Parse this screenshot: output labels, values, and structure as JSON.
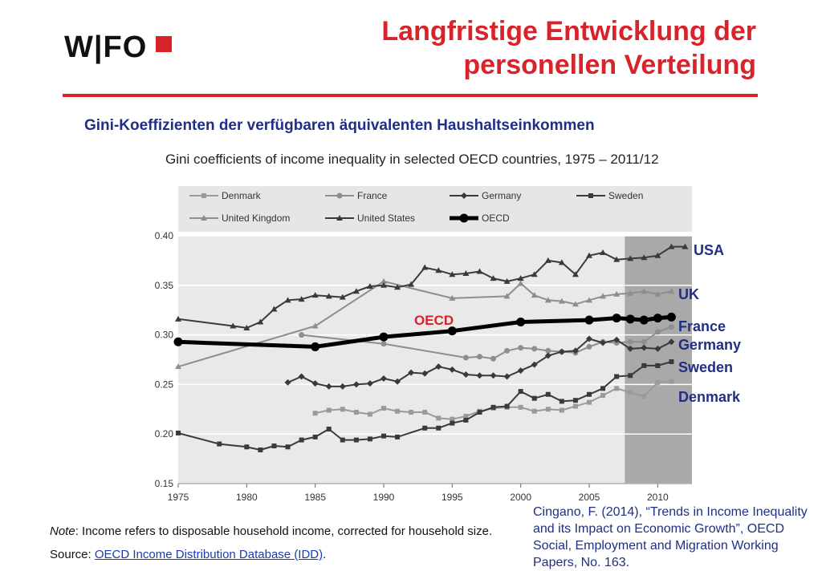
{
  "header": {
    "logo_text": "W|FO",
    "title_line1": "Langfristige Entwicklung der",
    "title_line2": "personellen Verteilung",
    "subtitle": "Gini-Koeffizienten der verfügbaren äquivalenten Haushaltseinkommen"
  },
  "colors": {
    "accent": "#d8232a",
    "label_blue": "#1f2f86",
    "link": "#1a3bb5"
  },
  "country_labels": [
    "USA",
    "UK",
    "France",
    "Germany",
    "Sweden",
    "Denmark"
  ],
  "oecd_label": "OECD",
  "note_prefix": "Note",
  "note_text": ": Income refers to disposable household income, corrected for household size.",
  "source_prefix": "Source: ",
  "source_link": "OECD Income Distribution Database (IDD)",
  "source_suffix": ".",
  "citation": "Cingano, F. (2014), “Trends in Income Inequality and its Impact on Economic Growth”, OECD Social, Employment and Migration Working Papers, No. 163.",
  "chart_data": {
    "type": "line",
    "title": "Gini coefficients of income inequality in selected OECD countries, 1975 – 2011/12",
    "xlim": [
      1975,
      2012.5
    ],
    "ylim": [
      0.15,
      0.4
    ],
    "xticks": [
      1975,
      1980,
      1985,
      1990,
      1995,
      2000,
      2005,
      2010
    ],
    "yticks": [
      "0.15",
      "0.20",
      "0.25",
      "0.30",
      "0.35",
      "0.40"
    ],
    "shaded_range": [
      2007.6,
      2012.5
    ],
    "legend": "top",
    "grid": "horizontal",
    "series": [
      {
        "name": "Denmark",
        "color": "#9a9a9a",
        "marker": "square",
        "width": 2,
        "x": [
          1985,
          1986,
          1987,
          1988,
          1989,
          1990,
          1991,
          1992,
          1993,
          1994,
          1995,
          1996,
          1997,
          1998,
          1999,
          2000,
          2001,
          2002,
          2003,
          2004,
          2005,
          2006,
          2007,
          2008,
          2009,
          2010,
          2011
        ],
        "y": [
          0.221,
          0.224,
          0.225,
          0.222,
          0.22,
          0.226,
          0.223,
          0.222,
          0.222,
          0.216,
          0.215,
          0.218,
          0.223,
          0.226,
          0.227,
          0.227,
          0.223,
          0.225,
          0.224,
          0.228,
          0.232,
          0.239,
          0.246,
          0.242,
          0.238,
          0.252,
          0.253
        ]
      },
      {
        "name": "France",
        "color": "#8e8e8e",
        "marker": "circle",
        "width": 2,
        "x": [
          1984,
          1990,
          1996,
          1997,
          1998,
          1999,
          2000,
          2001,
          2002,
          2003,
          2004,
          2005,
          2006,
          2007,
          2008,
          2009,
          2010,
          2011
        ],
        "y": [
          0.3,
          0.291,
          0.277,
          0.278,
          0.276,
          0.284,
          0.287,
          0.286,
          0.284,
          0.283,
          0.282,
          0.288,
          0.293,
          0.292,
          0.293,
          0.293,
          0.303,
          0.308
        ]
      },
      {
        "name": "Germany",
        "color": "#3a3a3a",
        "marker": "diamond",
        "width": 2,
        "x": [
          1983,
          1984,
          1985,
          1986,
          1987,
          1988,
          1989,
          1990,
          1991,
          1992,
          1993,
          1994,
          1995,
          1996,
          1997,
          1998,
          1999,
          2000,
          2001,
          2002,
          2003,
          2004,
          2005,
          2006,
          2007,
          2008,
          2009,
          2010,
          2011
        ],
        "y": [
          0.252,
          0.258,
          0.251,
          0.248,
          0.248,
          0.25,
          0.251,
          0.256,
          0.253,
          0.262,
          0.261,
          0.268,
          0.265,
          0.26,
          0.259,
          0.259,
          0.258,
          0.264,
          0.27,
          0.279,
          0.283,
          0.284,
          0.296,
          0.292,
          0.295,
          0.286,
          0.287,
          0.286,
          0.293
        ]
      },
      {
        "name": "Sweden",
        "color": "#3a3a3a",
        "marker": "square",
        "width": 2,
        "x": [
          1975,
          1978,
          1980,
          1981,
          1982,
          1983,
          1984,
          1985,
          1986,
          1987,
          1988,
          1989,
          1990,
          1991,
          1993,
          1994,
          1995,
          1996,
          1997,
          1998,
          1999,
          2000,
          2001,
          2002,
          2003,
          2004,
          2005,
          2006,
          2007,
          2008,
          2009,
          2010,
          2011
        ],
        "y": [
          0.201,
          0.19,
          0.187,
          0.184,
          0.188,
          0.187,
          0.194,
          0.197,
          0.205,
          0.194,
          0.194,
          0.195,
          0.198,
          0.197,
          0.206,
          0.206,
          0.211,
          0.214,
          0.222,
          0.227,
          0.228,
          0.243,
          0.236,
          0.24,
          0.233,
          0.234,
          0.24,
          0.246,
          0.258,
          0.259,
          0.269,
          0.269,
          0.273
        ]
      },
      {
        "name": "United Kingdom",
        "color": "#8e8e8e",
        "marker": "triangle",
        "width": 2,
        "x": [
          1975,
          1985,
          1990,
          1995,
          1999,
          2000,
          2001,
          2002,
          2003,
          2004,
          2005,
          2006,
          2007,
          2008,
          2009,
          2010,
          2011
        ],
        "y": [
          0.268,
          0.309,
          0.354,
          0.337,
          0.339,
          0.352,
          0.34,
          0.335,
          0.334,
          0.331,
          0.335,
          0.339,
          0.341,
          0.342,
          0.344,
          0.341,
          0.344
        ]
      },
      {
        "name": "United States",
        "color": "#3a3a3a",
        "marker": "triangle",
        "width": 2,
        "x": [
          1975,
          1979,
          1980,
          1981,
          1982,
          1983,
          1984,
          1985,
          1986,
          1987,
          1988,
          1989,
          1990,
          1991,
          1992,
          1993,
          1994,
          1995,
          1996,
          1997,
          1998,
          1999,
          2000,
          2001,
          2002,
          2003,
          2004,
          2005,
          2006,
          2007,
          2008,
          2009,
          2010,
          2011,
          2012
        ],
        "y": [
          0.316,
          0.309,
          0.307,
          0.313,
          0.326,
          0.335,
          0.336,
          0.34,
          0.339,
          0.338,
          0.344,
          0.349,
          0.35,
          0.348,
          0.351,
          0.368,
          0.365,
          0.361,
          0.362,
          0.364,
          0.357,
          0.354,
          0.357,
          0.361,
          0.375,
          0.373,
          0.361,
          0.38,
          0.383,
          0.376,
          0.377,
          0.378,
          0.38,
          0.389,
          0.389
        ]
      },
      {
        "name": "OECD",
        "color": "#000000",
        "marker": "circle",
        "width": 5,
        "x": [
          1975,
          1985,
          1990,
          1995,
          2000,
          2005,
          2007,
          2008,
          2009,
          2010,
          2011
        ],
        "y": [
          0.293,
          0.288,
          0.298,
          0.304,
          0.313,
          0.315,
          0.317,
          0.316,
          0.315,
          0.317,
          0.318
        ]
      }
    ]
  }
}
